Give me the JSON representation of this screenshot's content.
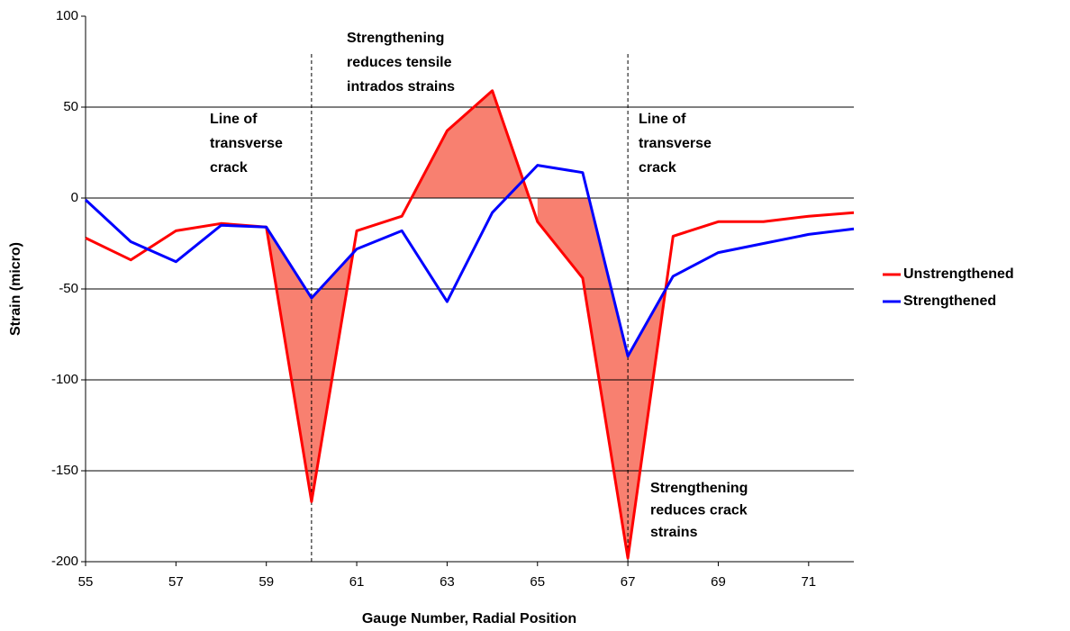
{
  "chart_data": {
    "type": "line",
    "x_label": "Gauge Number, Radial Position",
    "y_label": "Strain (micro)",
    "x": [
      55,
      56,
      57,
      58,
      59,
      60,
      61,
      62,
      63,
      64,
      65,
      66,
      67,
      68,
      69,
      70,
      71,
      72
    ],
    "series": [
      {
        "name": "Unstrengthened",
        "color": "#ff0000",
        "values": [
          -22,
          -34,
          -18,
          -14,
          -16,
          -167,
          -18,
          -10,
          37,
          59,
          -13,
          -44,
          -198,
          -21,
          -13,
          -13,
          -10,
          -8
        ]
      },
      {
        "name": "Strengthened",
        "color": "#0000ff",
        "values": [
          -1,
          -24,
          -35,
          -15,
          -16,
          -55,
          -28,
          -18,
          -57,
          -8,
          18,
          14,
          -87,
          -43,
          -30,
          -25,
          -20,
          -17
        ]
      }
    ],
    "fill_color": "#f88070",
    "xlim": [
      55,
      72
    ],
    "xticks": [
      55,
      57,
      59,
      61,
      63,
      65,
      67,
      69,
      71
    ],
    "ylim": [
      -200,
      100
    ],
    "yticks": [
      -200,
      -150,
      -100,
      -50,
      0,
      50,
      100
    ],
    "grid": true,
    "legend": "right",
    "reference_lines": [
      60,
      67
    ],
    "annotations": [
      [
        "Line of",
        "transverse",
        "crack"
      ],
      [
        "Strengthening",
        "reduces tensile",
        "intrados strains"
      ],
      [
        "Line of",
        "transverse",
        "crack"
      ],
      [
        "Strengthening",
        "reduces crack",
        "strains"
      ]
    ]
  }
}
